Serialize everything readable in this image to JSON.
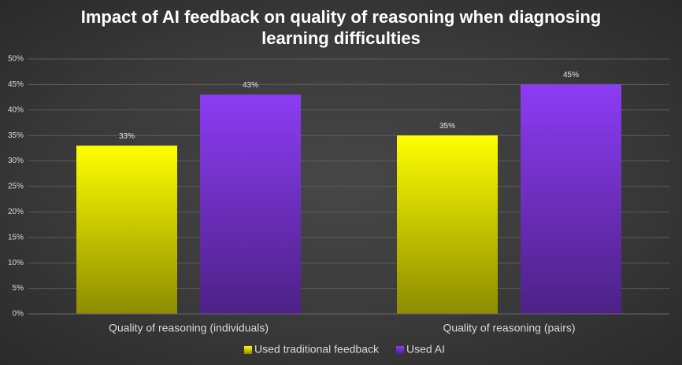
{
  "chart_data": {
    "type": "bar",
    "title": "Impact of AI feedback on quality of reasoning when diagnosing learning difficulties",
    "categories": [
      "Quality of reasoning (individuals)",
      "Quality of reasoning (pairs)"
    ],
    "series": [
      {
        "name": "Used traditional feedback",
        "color": "#ffff00",
        "values": [
          33,
          35
        ],
        "value_labels": [
          "33%",
          "35%"
        ]
      },
      {
        "name": "Used AI",
        "color": "#8c3cf4",
        "values": [
          43,
          45
        ],
        "value_labels": [
          "43%",
          "45%"
        ]
      }
    ],
    "ylim": [
      0,
      50
    ],
    "yticks": [
      {
        "value": 0,
        "label": "0%"
      },
      {
        "value": 5,
        "label": "5%"
      },
      {
        "value": 10,
        "label": "10%"
      },
      {
        "value": 15,
        "label": "15%"
      },
      {
        "value": 20,
        "label": "20%"
      },
      {
        "value": 25,
        "label": "25%"
      },
      {
        "value": 30,
        "label": "30%"
      },
      {
        "value": 35,
        "label": "35%"
      },
      {
        "value": 40,
        "label": "40%"
      },
      {
        "value": 45,
        "label": "45%"
      },
      {
        "value": 50,
        "label": "50%"
      }
    ],
    "grid": true,
    "legend": "bottom"
  }
}
